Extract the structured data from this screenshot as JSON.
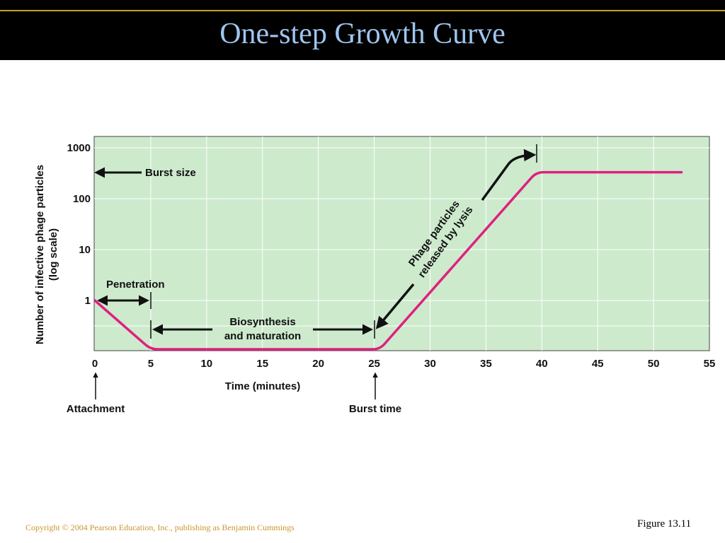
{
  "slide": {
    "title": "One-step Growth Curve",
    "copyright": "Copyright © 2004 Pearson Education, Inc., publishing as Benjamin Cummings",
    "figure": "Figure 13.11"
  },
  "colors": {
    "title_text": "#9fc5f0",
    "title_rule": "#c9a227",
    "plot_bg": "#cdeacd",
    "curve": "#e0207f",
    "copyright_text": "#c9962e"
  },
  "chart_data": {
    "type": "line",
    "title": "",
    "xlabel": "Time (minutes)",
    "ylabel": "Number of infective phage particles",
    "ylabel_sub": "(log scale)",
    "xlim": [
      0,
      55
    ],
    "x_ticks": [
      0,
      5,
      10,
      15,
      20,
      25,
      30,
      35,
      40,
      45,
      50,
      55
    ],
    "y_scale": "log",
    "y_ticks": [
      1,
      10,
      100,
      1000
    ],
    "grid": true,
    "series": [
      {
        "name": "",
        "points": [
          [
            0,
            1
          ],
          [
            5,
            0.11
          ],
          [
            25.5,
            0.11
          ],
          [
            39.5,
            330
          ],
          [
            52.5,
            330
          ]
        ]
      }
    ],
    "annotations": {
      "burst_size": "Burst size",
      "penetration": "Penetration",
      "biosynthesis_line1": "Biosynthesis",
      "biosynthesis_line2": "and maturation",
      "phage_line1": "Phage particles",
      "phage_line2": "released by lysis",
      "attachment": "Attachment",
      "burst_time": "Burst time"
    }
  }
}
